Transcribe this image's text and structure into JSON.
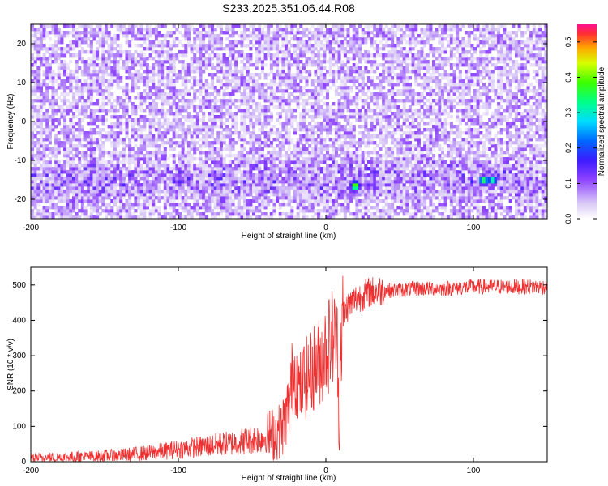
{
  "title": "S233.2025.351.06.44.R08",
  "chart_data": [
    {
      "type": "heatmap",
      "xlabel": "Height of straight line (km)",
      "ylabel": "Frequency (Hz)",
      "xlim": [
        -200,
        150
      ],
      "ylim": [
        -25,
        25
      ],
      "xticks": [
        -200,
        -100,
        0,
        100
      ],
      "yticks": [
        -20,
        -10,
        0,
        10,
        20
      ],
      "colorbar": {
        "label": "Normalized spectral amplitude",
        "range": [
          0.0,
          0.55
        ],
        "ticks": [
          "0.0",
          "0.1",
          "0.2",
          "0.3",
          "0.4",
          "0.5"
        ]
      },
      "description_band": "strong energy concentrated near -15 Hz across heights",
      "hotspots": [
        {
          "x": 20,
          "y": -16.5,
          "value": 0.45
        },
        {
          "x": 107,
          "y": -15,
          "value": 0.4
        },
        {
          "x": 113,
          "y": -15,
          "value": 0.35
        },
        {
          "x": -158,
          "y": -11,
          "value": 0.15
        },
        {
          "x": -70,
          "y": -20,
          "value": 0.15
        },
        {
          "x": 28,
          "y": -16,
          "value": 0.12
        }
      ]
    },
    {
      "type": "line",
      "xlabel": "Height of straight line (km)",
      "ylabel": "SNR (10 * v/v)",
      "xlim": [
        -200,
        150
      ],
      "ylim": [
        0,
        550
      ],
      "xticks": [
        -200,
        -100,
        0,
        100
      ],
      "yticks": [
        0,
        100,
        200,
        300,
        400,
        500
      ],
      "color": "#f03030",
      "series": [
        {
          "x": [
            -200,
            -180,
            -160,
            -140,
            -120,
            -100,
            -80,
            -60,
            -40,
            -30,
            -25,
            -22,
            -20,
            -18,
            -15,
            -12,
            -10,
            -8,
            -5,
            -2,
            0,
            3,
            5,
            8,
            9,
            10,
            12,
            15,
            20,
            25,
            30,
            40,
            50,
            60,
            80,
            100,
            120,
            150
          ],
          "values": [
            10,
            12,
            14,
            18,
            25,
            35,
            45,
            55,
            70,
            90,
            160,
            260,
            250,
            200,
            230,
            240,
            250,
            270,
            280,
            300,
            320,
            340,
            360,
            320,
            60,
            330,
            420,
            440,
            460,
            470,
            480,
            485,
            485,
            490,
            490,
            495,
            495,
            495
          ]
        }
      ]
    }
  ]
}
